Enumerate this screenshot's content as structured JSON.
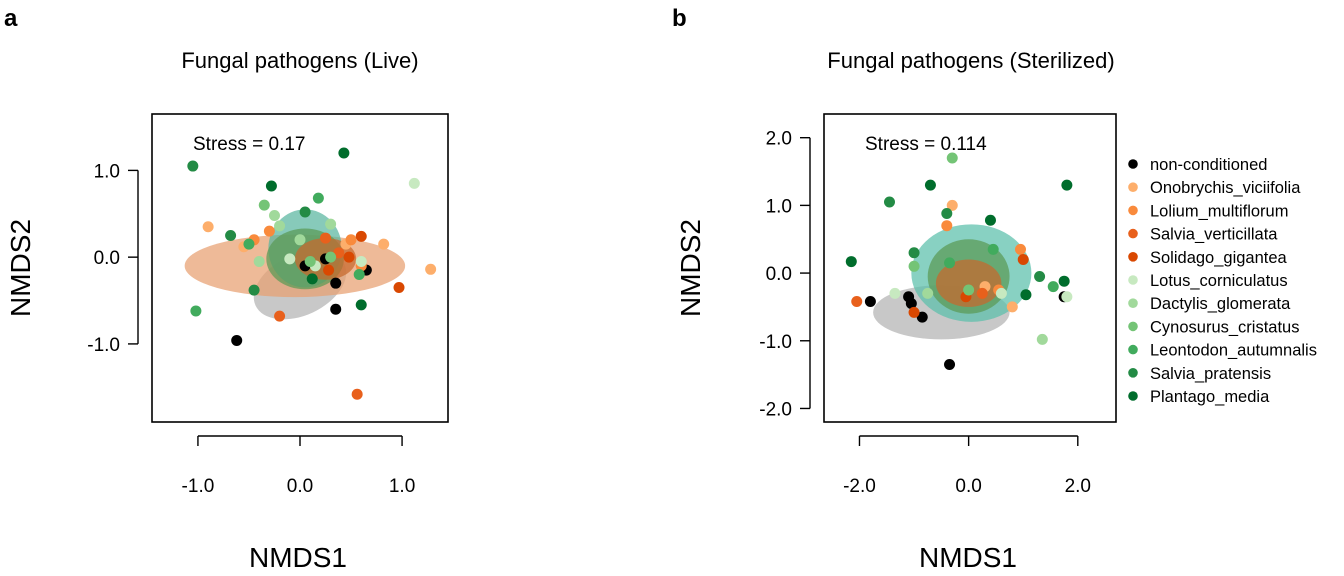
{
  "panels": [
    {
      "letter": "a",
      "title": "Fungal pathogens (Live)",
      "stress_label": "Stress =  0.17"
    },
    {
      "letter": "b",
      "title": "Fungal pathogens (Sterilized)",
      "stress_label": "Stress =  0.114"
    }
  ],
  "colors": {
    "non-conditioned": "#000000",
    "Onobrychis_viciifolia": "#fdae6b",
    "Lolium_multiflorum": "#f98a3c",
    "Salvia_verticillata": "#e8601c",
    "Solidago_gigantea": "#d94801",
    "Lotus_corniculatus": "#c7e9c0",
    "Dactylis_glomerata": "#a1d99b",
    "Cynosurus_cristatus": "#74c476",
    "Leontodon_autumnalis": "#41ab5d",
    "Salvia_pratensis": "#238b45",
    "Plantago_media": "#006d2c"
  },
  "chart_data": [
    {
      "type": "scatter",
      "title": "Fungal pathogens (Live)",
      "xlabel": "NMDS1",
      "ylabel": "NMDS2",
      "xlim": [
        -1.45,
        1.45
      ],
      "ylim": [
        -1.9,
        1.65
      ],
      "xticks": [
        -1.0,
        0.0,
        1.0
      ],
      "yticks": [
        -1.0,
        0.0,
        1.0
      ],
      "xtick_labels": [
        "-1.0",
        "0.0",
        "1.0"
      ],
      "ytick_labels": [
        "-1.0",
        "0.0",
        "1.0"
      ],
      "annotation": "Stress =  0.17",
      "ellipses": [
        {
          "cx": 0.0,
          "cy": -0.32,
          "rx": 0.48,
          "ry": 0.35,
          "angle": 25,
          "color": "#b3b3b3"
        },
        {
          "cx": -0.05,
          "cy": -0.1,
          "rx": 1.08,
          "ry": 0.36,
          "angle": 0,
          "color": "#e8a070"
        },
        {
          "cx": 0.05,
          "cy": 0.1,
          "rx": 0.36,
          "ry": 0.45,
          "angle": 0,
          "color": "#59b5a0"
        },
        {
          "cx": 0.05,
          "cy": -0.02,
          "rx": 0.38,
          "ry": 0.35,
          "angle": 0,
          "color": "#5a9a55"
        },
        {
          "cx": 0.25,
          "cy": -0.02,
          "rx": 0.3,
          "ry": 0.24,
          "angle": 0,
          "color": "#c7682d"
        }
      ],
      "points": [
        {
          "x": -0.62,
          "y": -0.96,
          "group": "non-conditioned"
        },
        {
          "x": 0.35,
          "y": -0.3,
          "group": "non-conditioned"
        },
        {
          "x": 0.35,
          "y": -0.6,
          "group": "non-conditioned"
        },
        {
          "x": 0.65,
          "y": -0.15,
          "group": "non-conditioned"
        },
        {
          "x": 0.25,
          "y": -0.02,
          "group": "non-conditioned"
        },
        {
          "x": 0.05,
          "y": -0.1,
          "group": "non-conditioned"
        },
        {
          "x": -0.9,
          "y": 0.35,
          "group": "Onobrychis_viciifolia"
        },
        {
          "x": 1.28,
          "y": -0.14,
          "group": "Onobrychis_viciifolia"
        },
        {
          "x": 0.82,
          "y": 0.15,
          "group": "Onobrychis_viciifolia"
        },
        {
          "x": -0.55,
          "y": 0.12,
          "group": "Onobrychis_viciifolia"
        },
        {
          "x": 0.45,
          "y": 0.15,
          "group": "Onobrychis_viciifolia"
        },
        {
          "x": -0.45,
          "y": 0.2,
          "group": "Lolium_multiflorum"
        },
        {
          "x": -0.3,
          "y": 0.3,
          "group": "Lolium_multiflorum"
        },
        {
          "x": 0.5,
          "y": 0.2,
          "group": "Lolium_multiflorum"
        },
        {
          "x": 0.6,
          "y": -0.1,
          "group": "Lolium_multiflorum"
        },
        {
          "x": -0.2,
          "y": -0.68,
          "group": "Salvia_verticillata"
        },
        {
          "x": 0.56,
          "y": -1.58,
          "group": "Salvia_verticillata"
        },
        {
          "x": 0.25,
          "y": 0.22,
          "group": "Salvia_verticillata"
        },
        {
          "x": 0.38,
          "y": 0.05,
          "group": "Salvia_verticillata"
        },
        {
          "x": 0.6,
          "y": 0.24,
          "group": "Solidago_gigantea"
        },
        {
          "x": 0.97,
          "y": -0.35,
          "group": "Solidago_gigantea"
        },
        {
          "x": 0.28,
          "y": -0.15,
          "group": "Solidago_gigantea"
        },
        {
          "x": 0.48,
          "y": 0.0,
          "group": "Solidago_gigantea"
        },
        {
          "x": 1.12,
          "y": 0.85,
          "group": "Lotus_corniculatus"
        },
        {
          "x": -0.1,
          "y": -0.02,
          "group": "Lotus_corniculatus"
        },
        {
          "x": 0.15,
          "y": -0.1,
          "group": "Lotus_corniculatus"
        },
        {
          "x": 0.6,
          "y": -0.05,
          "group": "Lotus_corniculatus"
        },
        {
          "x": -0.25,
          "y": 0.48,
          "group": "Dactylis_glomerata"
        },
        {
          "x": -0.2,
          "y": 0.36,
          "group": "Dactylis_glomerata"
        },
        {
          "x": 0.3,
          "y": 0.38,
          "group": "Dactylis_glomerata"
        },
        {
          "x": -0.4,
          "y": -0.05,
          "group": "Dactylis_glomerata"
        },
        {
          "x": 0.0,
          "y": 0.2,
          "group": "Dactylis_glomerata"
        },
        {
          "x": 0.3,
          "y": 0.0,
          "group": "Cynosurus_cristatus"
        },
        {
          "x": 0.1,
          "y": -0.05,
          "group": "Cynosurus_cristatus"
        },
        {
          "x": -0.35,
          "y": 0.6,
          "group": "Cynosurus_cristatus"
        },
        {
          "x": -1.02,
          "y": -0.62,
          "group": "Leontodon_autumnalis"
        },
        {
          "x": 0.18,
          "y": 0.68,
          "group": "Leontodon_autumnalis"
        },
        {
          "x": -0.5,
          "y": 0.15,
          "group": "Leontodon_autumnalis"
        },
        {
          "x": 0.58,
          "y": -0.2,
          "group": "Leontodon_autumnalis"
        },
        {
          "x": -1.05,
          "y": 1.05,
          "group": "Salvia_pratensis"
        },
        {
          "x": -0.68,
          "y": 0.25,
          "group": "Salvia_pratensis"
        },
        {
          "x": 0.05,
          "y": 0.52,
          "group": "Salvia_pratensis"
        },
        {
          "x": -0.45,
          "y": -0.38,
          "group": "Salvia_pratensis"
        },
        {
          "x": 0.43,
          "y": 1.2,
          "group": "Plantago_media"
        },
        {
          "x": -0.28,
          "y": 0.82,
          "group": "Plantago_media"
        },
        {
          "x": 0.6,
          "y": -0.55,
          "group": "Plantago_media"
        },
        {
          "x": 0.12,
          "y": -0.25,
          "group": "Plantago_media"
        }
      ]
    },
    {
      "type": "scatter",
      "title": "Fungal pathogens (Sterilized)",
      "xlabel": "NMDS1",
      "ylabel": "NMDS2",
      "xlim": [
        -2.65,
        2.7
      ],
      "ylim": [
        -2.2,
        2.35
      ],
      "xticks": [
        -2.0,
        0.0,
        2.0
      ],
      "yticks": [
        -2.0,
        -1.0,
        0.0,
        1.0,
        2.0
      ],
      "xtick_labels": [
        "-2.0",
        "0.0",
        "2.0"
      ],
      "ytick_labels": [
        "-2.0",
        "-1.0",
        "0.0",
        "1.0",
        "2.0"
      ],
      "annotation": "Stress =  0.114",
      "ellipses": [
        {
          "cx": -0.5,
          "cy": -0.58,
          "rx": 1.25,
          "ry": 0.4,
          "angle": 0,
          "color": "#b3b3b3"
        },
        {
          "cx": 0.05,
          "cy": 0.0,
          "rx": 1.1,
          "ry": 0.72,
          "angle": 0,
          "color": "#5abfaa"
        },
        {
          "cx": 0.0,
          "cy": -0.05,
          "rx": 0.75,
          "ry": 0.55,
          "angle": 0,
          "color": "#5a9a55"
        },
        {
          "cx": 0.0,
          "cy": -0.15,
          "rx": 0.6,
          "ry": 0.35,
          "angle": 0,
          "color": "#c7682d"
        }
      ],
      "points": [
        {
          "x": -1.8,
          "y": -0.42,
          "group": "non-conditioned"
        },
        {
          "x": -1.1,
          "y": -0.35,
          "group": "non-conditioned"
        },
        {
          "x": -1.05,
          "y": -0.45,
          "group": "non-conditioned"
        },
        {
          "x": -0.85,
          "y": -0.65,
          "group": "non-conditioned"
        },
        {
          "x": -0.35,
          "y": -1.35,
          "group": "non-conditioned"
        },
        {
          "x": 1.75,
          "y": -0.35,
          "group": "non-conditioned"
        },
        {
          "x": -0.3,
          "y": 1.0,
          "group": "Onobrychis_viciifolia"
        },
        {
          "x": 0.8,
          "y": -0.5,
          "group": "Onobrychis_viciifolia"
        },
        {
          "x": 0.3,
          "y": -0.2,
          "group": "Onobrychis_viciifolia"
        },
        {
          "x": -0.4,
          "y": 0.7,
          "group": "Lolium_multiflorum"
        },
        {
          "x": 0.95,
          "y": 0.35,
          "group": "Lolium_multiflorum"
        },
        {
          "x": 0.55,
          "y": -0.25,
          "group": "Lolium_multiflorum"
        },
        {
          "x": -2.05,
          "y": -0.42,
          "group": "Salvia_verticillata"
        },
        {
          "x": 0.25,
          "y": -0.3,
          "group": "Salvia_verticillata"
        },
        {
          "x": -0.05,
          "y": -0.35,
          "group": "Solidago_gigantea"
        },
        {
          "x": -1.0,
          "y": -0.58,
          "group": "Solidago_gigantea"
        },
        {
          "x": 1.0,
          "y": 0.2,
          "group": "Solidago_gigantea"
        },
        {
          "x": -1.35,
          "y": -0.3,
          "group": "Lotus_corniculatus"
        },
        {
          "x": 0.6,
          "y": -0.3,
          "group": "Lotus_corniculatus"
        },
        {
          "x": 1.8,
          "y": -0.35,
          "group": "Lotus_corniculatus"
        },
        {
          "x": -0.75,
          "y": -0.3,
          "group": "Dactylis_glomerata"
        },
        {
          "x": 1.35,
          "y": -0.98,
          "group": "Dactylis_glomerata"
        },
        {
          "x": -0.3,
          "y": 1.7,
          "group": "Cynosurus_cristatus"
        },
        {
          "x": -1.0,
          "y": 0.1,
          "group": "Cynosurus_cristatus"
        },
        {
          "x": 0.0,
          "y": -0.25,
          "group": "Cynosurus_cristatus"
        },
        {
          "x": -0.35,
          "y": 0.15,
          "group": "Leontodon_autumnalis"
        },
        {
          "x": 0.45,
          "y": 0.35,
          "group": "Leontodon_autumnalis"
        },
        {
          "x": 1.55,
          "y": -0.2,
          "group": "Leontodon_autumnalis"
        },
        {
          "x": -1.45,
          "y": 1.05,
          "group": "Salvia_pratensis"
        },
        {
          "x": -0.4,
          "y": 0.88,
          "group": "Salvia_pratensis"
        },
        {
          "x": 1.3,
          "y": -0.05,
          "group": "Salvia_pratensis"
        },
        {
          "x": -1.0,
          "y": 0.3,
          "group": "Salvia_pratensis"
        },
        {
          "x": -2.15,
          "y": 0.17,
          "group": "Plantago_media"
        },
        {
          "x": -0.7,
          "y": 1.3,
          "group": "Plantago_media"
        },
        {
          "x": 1.8,
          "y": 1.3,
          "group": "Plantago_media"
        },
        {
          "x": 0.4,
          "y": 0.78,
          "group": "Plantago_media"
        },
        {
          "x": 1.05,
          "y": -0.32,
          "group": "Plantago_media"
        },
        {
          "x": 1.75,
          "y": -0.12,
          "group": "Plantago_media"
        }
      ]
    }
  ],
  "legend": {
    "placement": "right",
    "entries": [
      "non-conditioned",
      "Onobrychis_viciifolia",
      "Lolium_multiflorum",
      "Salvia_verticillata",
      "Solidago_gigantea",
      "Lotus_corniculatus",
      "Dactylis_glomerata",
      "Cynosurus_cristatus",
      "Leontodon_autumnalis",
      "Salvia_pratensis",
      "Plantago_media"
    ]
  }
}
